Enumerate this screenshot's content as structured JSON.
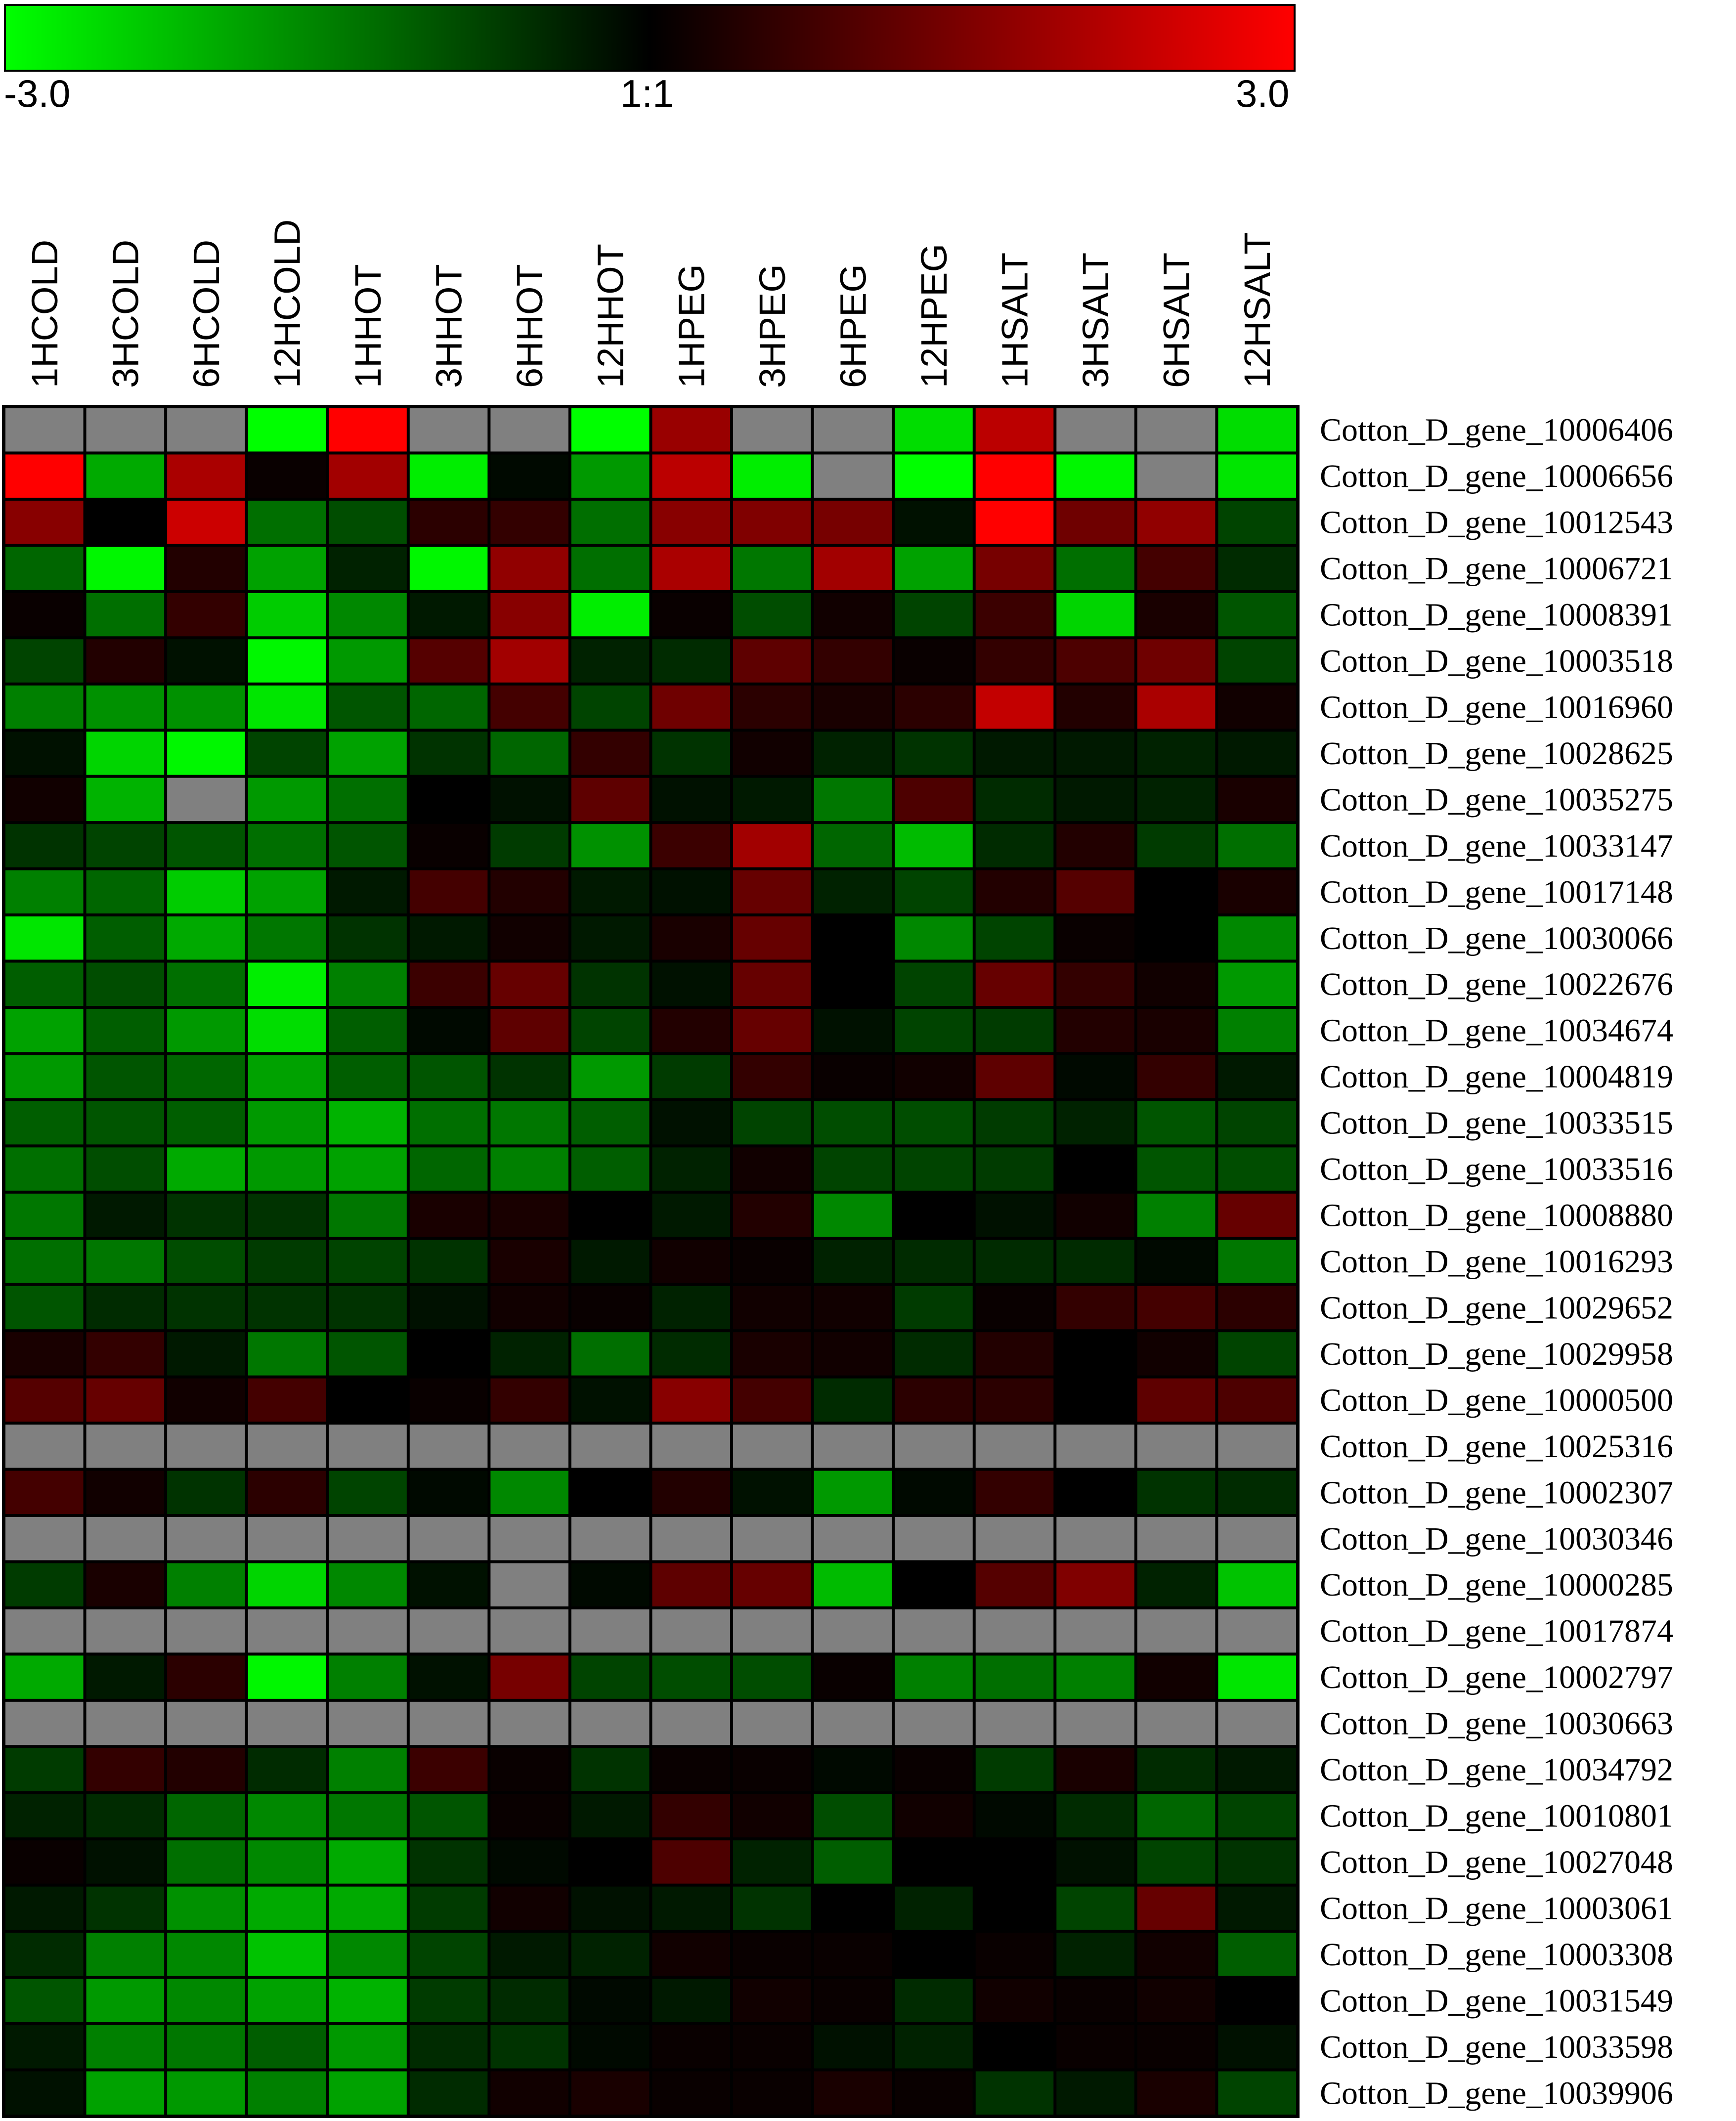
{
  "chart_data": {
    "type": "heatmap",
    "color_scale": {
      "min_label": "-3.0",
      "mid_label": "1:1",
      "max_label": "3.0",
      "min": -3.0,
      "max": 3.0,
      "low_color": "#00ff00",
      "mid_color": "#000000",
      "high_color": "#ff0000",
      "missing_color": "#808080"
    },
    "columns": [
      "1HCOLD",
      "3HCOLD",
      "6HCOLD",
      "12HCOLD",
      "1HHOT",
      "3HHOT",
      "6HHOT",
      "12HHOT",
      "1HPEG",
      "3HPEG",
      "6HPEG",
      "12HPEG",
      "1HSALT",
      "3HSALT",
      "6HSALT",
      "12HSALT"
    ],
    "rows": [
      {
        "gene": "Cotton_D_gene_10006406",
        "values": [
          null,
          null,
          null,
          -3.0,
          3.0,
          null,
          null,
          -3.0,
          1.8,
          null,
          null,
          -2.6,
          2.2,
          null,
          null,
          -2.6
        ]
      },
      {
        "gene": "Cotton_D_gene_10006656",
        "values": [
          3.0,
          -2.0,
          2.0,
          0.1,
          1.9,
          -2.8,
          -0.1,
          -1.8,
          2.2,
          -2.8,
          null,
          -3.0,
          3.0,
          -2.9,
          null,
          -2.7
        ]
      },
      {
        "gene": "Cotton_D_gene_10012543",
        "values": [
          1.6,
          0.0,
          2.4,
          -1.3,
          -0.9,
          0.5,
          0.6,
          -1.3,
          1.6,
          1.5,
          1.4,
          -0.2,
          3.0,
          1.3,
          1.7,
          -0.8
        ]
      },
      {
        "gene": "Cotton_D_gene_10006721",
        "values": [
          -1.2,
          -2.9,
          0.4,
          -1.9,
          -0.4,
          -2.9,
          1.7,
          -1.3,
          2.0,
          -1.4,
          1.9,
          -1.9,
          1.4,
          -1.3,
          0.8,
          -0.5
        ]
      },
      {
        "gene": "Cotton_D_gene_10008391",
        "values": [
          0.1,
          -1.3,
          0.6,
          -2.4,
          -1.6,
          -0.3,
          1.6,
          -2.8,
          0.1,
          -0.9,
          0.2,
          -0.8,
          0.7,
          -2.5,
          0.3,
          -1.0
        ]
      },
      {
        "gene": "Cotton_D_gene_10003518",
        "values": [
          -0.8,
          0.4,
          -0.2,
          -2.9,
          -1.8,
          1.0,
          1.9,
          -0.4,
          -0.5,
          1.1,
          0.6,
          0.1,
          0.6,
          0.9,
          1.3,
          -0.8
        ]
      },
      {
        "gene": "Cotton_D_gene_10016960",
        "values": [
          -1.5,
          -1.7,
          -1.7,
          -2.7,
          -1.0,
          -1.2,
          0.8,
          -0.8,
          1.3,
          0.5,
          0.3,
          0.5,
          2.3,
          0.4,
          2.0,
          0.2
        ]
      },
      {
        "gene": "Cotton_D_gene_10028625",
        "values": [
          -0.2,
          -2.5,
          -2.9,
          -0.8,
          -1.9,
          -0.6,
          -1.2,
          0.6,
          -0.6,
          0.2,
          -0.4,
          -0.6,
          -0.3,
          -0.3,
          -0.4,
          -0.3
        ]
      },
      {
        "gene": "Cotton_D_gene_10035275",
        "values": [
          0.2,
          -2.1,
          null,
          -1.8,
          -1.3,
          0.0,
          -0.2,
          1.1,
          -0.2,
          -0.3,
          -1.4,
          0.9,
          -0.5,
          -0.3,
          -0.4,
          0.3
        ]
      },
      {
        "gene": "Cotton_D_gene_10033147",
        "values": [
          -0.6,
          -0.8,
          -1.0,
          -1.3,
          -1.0,
          0.1,
          -0.7,
          -1.7,
          0.7,
          1.9,
          -1.2,
          -2.2,
          -0.5,
          0.4,
          -0.7,
          -1.3
        ]
      },
      {
        "gene": "Cotton_D_gene_10017148",
        "values": [
          -1.5,
          -1.2,
          -2.4,
          -1.9,
          -0.3,
          0.8,
          0.4,
          -0.3,
          -0.2,
          1.2,
          -0.4,
          -0.8,
          0.4,
          1.0,
          0.0,
          0.3
        ]
      },
      {
        "gene": "Cotton_D_gene_10030066",
        "values": [
          -2.7,
          -1.1,
          -2.0,
          -1.4,
          -0.6,
          -0.3,
          0.2,
          -0.3,
          0.3,
          1.2,
          0.0,
          -1.6,
          -0.8,
          0.1,
          0.0,
          -1.6
        ]
      },
      {
        "gene": "Cotton_D_gene_10022676",
        "values": [
          -1.1,
          -0.9,
          -1.3,
          -2.8,
          -1.5,
          0.7,
          1.2,
          -0.6,
          -0.2,
          1.2,
          0.0,
          -0.8,
          1.2,
          0.6,
          0.2,
          -1.8
        ]
      },
      {
        "gene": "Cotton_D_gene_10034674",
        "values": [
          -1.9,
          -1.1,
          -1.8,
          -2.6,
          -1.1,
          -0.1,
          1.1,
          -0.8,
          0.4,
          1.2,
          -0.2,
          -0.8,
          -0.7,
          0.4,
          0.3,
          -1.5
        ]
      },
      {
        "gene": "Cotton_D_gene_10004819",
        "values": [
          -1.8,
          -1.0,
          -1.2,
          -1.9,
          -1.1,
          -1.0,
          -0.6,
          -1.8,
          -0.7,
          0.6,
          0.1,
          0.2,
          1.1,
          -0.1,
          0.6,
          -0.3
        ]
      },
      {
        "gene": "Cotton_D_gene_10033515",
        "values": [
          -1.1,
          -1.0,
          -1.1,
          -1.8,
          -2.1,
          -1.3,
          -1.4,
          -1.1,
          -0.2,
          -0.8,
          -0.9,
          -0.9,
          -0.7,
          -0.4,
          -1.0,
          -0.8
        ]
      },
      {
        "gene": "Cotton_D_gene_10033516",
        "values": [
          -1.3,
          -0.9,
          -2.0,
          -1.8,
          -1.9,
          -1.2,
          -1.5,
          -1.1,
          -0.4,
          0.2,
          -0.8,
          -0.8,
          -0.7,
          0.0,
          -1.0,
          -0.9
        ]
      },
      {
        "gene": "Cotton_D_gene_10008880",
        "values": [
          -1.4,
          -0.3,
          -0.6,
          -0.6,
          -1.4,
          0.3,
          0.3,
          0.0,
          -0.3,
          0.4,
          -1.6,
          0.0,
          -0.2,
          0.2,
          -1.5,
          1.2
        ]
      },
      {
        "gene": "Cotton_D_gene_10016293",
        "values": [
          -1.3,
          -1.4,
          -0.9,
          -0.7,
          -0.8,
          -0.6,
          0.3,
          -0.3,
          0.2,
          0.1,
          -0.4,
          -0.5,
          -0.5,
          -0.5,
          -0.1,
          -1.4
        ]
      },
      {
        "gene": "Cotton_D_gene_10029652",
        "values": [
          -1.0,
          -0.5,
          -0.6,
          -0.6,
          -0.6,
          -0.2,
          0.2,
          0.1,
          -0.4,
          0.2,
          0.2,
          -0.7,
          0.1,
          0.6,
          0.8,
          0.5
        ]
      },
      {
        "gene": "Cotton_D_gene_10029958",
        "values": [
          0.3,
          0.6,
          -0.3,
          -1.4,
          -1.0,
          0.0,
          -0.4,
          -1.3,
          -0.5,
          0.3,
          0.2,
          -0.5,
          0.4,
          0.0,
          0.2,
          -0.8
        ]
      },
      {
        "gene": "Cotton_D_gene_10000500",
        "values": [
          1.0,
          1.2,
          0.2,
          0.8,
          0.0,
          0.1,
          0.6,
          -0.2,
          1.6,
          0.8,
          -0.5,
          0.5,
          0.5,
          0.0,
          1.1,
          0.9
        ]
      },
      {
        "gene": "Cotton_D_gene_10025316",
        "values": [
          null,
          null,
          null,
          null,
          null,
          null,
          null,
          null,
          null,
          null,
          null,
          null,
          null,
          null,
          null,
          null
        ]
      },
      {
        "gene": "Cotton_D_gene_10002307",
        "values": [
          0.8,
          0.2,
          -0.6,
          0.5,
          -0.8,
          -0.1,
          -1.6,
          0.0,
          0.4,
          -0.2,
          -1.8,
          -0.1,
          0.6,
          0.0,
          -0.6,
          -0.5
        ]
      },
      {
        "gene": "Cotton_D_gene_10030346",
        "values": [
          null,
          null,
          null,
          null,
          null,
          null,
          null,
          null,
          null,
          null,
          null,
          null,
          null,
          null,
          null,
          null
        ]
      },
      {
        "gene": "Cotton_D_gene_10000285",
        "values": [
          -0.7,
          0.3,
          -1.5,
          -2.5,
          -1.6,
          -0.2,
          null,
          -0.1,
          1.1,
          1.2,
          -2.2,
          0.0,
          1.0,
          1.5,
          -0.4,
          -2.3
        ]
      },
      {
        "gene": "Cotton_D_gene_10017874",
        "values": [
          null,
          null,
          null,
          null,
          null,
          null,
          null,
          null,
          null,
          null,
          null,
          null,
          null,
          null,
          null,
          null
        ]
      },
      {
        "gene": "Cotton_D_gene_10002797",
        "values": [
          -2.0,
          -0.3,
          0.5,
          -2.9,
          -1.5,
          -0.2,
          1.4,
          -0.8,
          -0.9,
          -0.9,
          0.1,
          -1.5,
          -1.3,
          -1.5,
          0.2,
          -2.7
        ]
      },
      {
        "gene": "Cotton_D_gene_10030663",
        "values": [
          null,
          null,
          null,
          null,
          null,
          null,
          null,
          null,
          null,
          null,
          null,
          null,
          null,
          null,
          null,
          null
        ]
      },
      {
        "gene": "Cotton_D_gene_10034792",
        "values": [
          -0.7,
          0.6,
          0.4,
          -0.5,
          -1.5,
          0.7,
          0.1,
          -0.6,
          0.1,
          0.1,
          -0.1,
          0.1,
          -0.7,
          0.3,
          -0.5,
          -0.3
        ]
      },
      {
        "gene": "Cotton_D_gene_10010801",
        "values": [
          -0.4,
          -0.5,
          -1.2,
          -1.6,
          -1.4,
          -1.0,
          0.1,
          -0.3,
          0.6,
          0.2,
          -0.9,
          0.2,
          -0.1,
          -0.5,
          -1.2,
          -0.8
        ]
      },
      {
        "gene": "Cotton_D_gene_10027048",
        "values": [
          0.1,
          -0.2,
          -1.3,
          -1.6,
          -2.0,
          -0.6,
          -0.1,
          0.0,
          0.9,
          -0.4,
          -1.1,
          0.0,
          0.0,
          -0.2,
          -0.8,
          -0.6
        ]
      },
      {
        "gene": "Cotton_D_gene_10003061",
        "values": [
          -0.3,
          -0.6,
          -1.7,
          -2.0,
          -2.0,
          -0.7,
          0.2,
          -0.2,
          -0.3,
          -0.6,
          0.0,
          -0.4,
          0.0,
          -0.8,
          1.2,
          -0.3
        ]
      },
      {
        "gene": "Cotton_D_gene_10003308",
        "values": [
          -0.5,
          -1.5,
          -1.6,
          -2.3,
          -1.6,
          -0.8,
          -0.3,
          -0.4,
          0.2,
          0.1,
          0.1,
          0.0,
          0.1,
          -0.4,
          0.2,
          -1.1
        ]
      },
      {
        "gene": "Cotton_D_gene_10031549",
        "values": [
          -1.0,
          -1.8,
          -1.6,
          -1.9,
          -2.1,
          -0.7,
          -0.5,
          -0.1,
          -0.3,
          0.2,
          0.1,
          -0.5,
          0.2,
          0.1,
          0.2,
          0.0
        ]
      },
      {
        "gene": "Cotton_D_gene_10033598",
        "values": [
          -0.3,
          -1.5,
          -1.4,
          -1.1,
          -1.8,
          -0.5,
          -0.6,
          -0.1,
          0.1,
          0.1,
          -0.2,
          -0.4,
          0.0,
          0.1,
          0.1,
          -0.2
        ]
      },
      {
        "gene": "Cotton_D_gene_10039906",
        "values": [
          -0.2,
          -1.9,
          -1.8,
          -1.5,
          -1.9,
          -0.5,
          0.2,
          0.3,
          0.1,
          0.1,
          0.3,
          0.1,
          -0.6,
          -0.3,
          0.3,
          -0.8
        ]
      }
    ]
  }
}
